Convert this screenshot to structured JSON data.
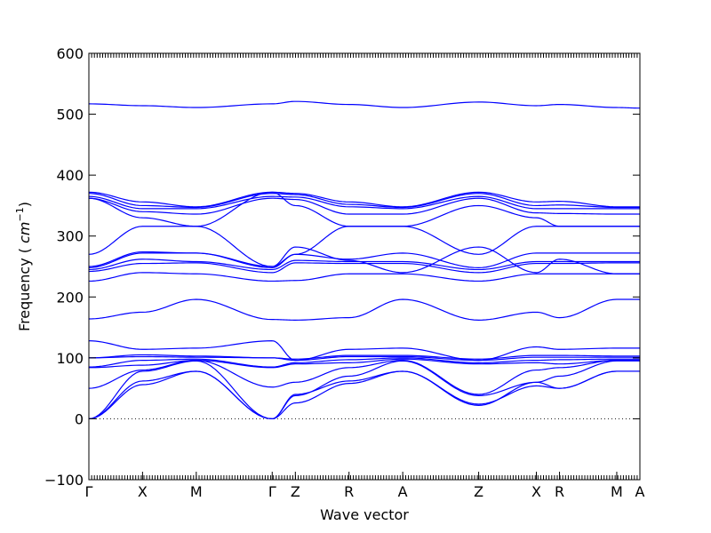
{
  "chart_data": {
    "type": "line",
    "title": "",
    "xlabel": "Wave vector",
    "ylabel": "Frequency (cm⁻¹)",
    "ylabel_unit_base": "cm",
    "ylabel_unit_exp": "−1",
    "ylim": [
      -100,
      600
    ],
    "yticks": [
      -100,
      0,
      100,
      200,
      300,
      400,
      500,
      600
    ],
    "xlim": [
      0,
      1
    ],
    "x_points": [
      {
        "label": "Γ",
        "x": 0.0
      },
      {
        "label": "X",
        "x": 0.0974
      },
      {
        "label": "M",
        "x": 0.1949
      },
      {
        "label": "Γ",
        "x": 0.3327
      },
      {
        "label": "Z",
        "x": 0.3747
      },
      {
        "label": "R",
        "x": 0.4721
      },
      {
        "label": "A",
        "x": 0.5696
      },
      {
        "label": "Z",
        "x": 0.7074
      },
      {
        "label": "X",
        "x": 0.8121
      },
      {
        "label": "R",
        "x": 0.8541
      },
      {
        "label": "M",
        "x": 0.958
      },
      {
        "label": "A",
        "x": 1.0
      }
    ],
    "zero_line": true,
    "series": [
      {
        "x": [
          0,
          0.0974,
          0.1949,
          0.3327,
          0.3747,
          0.4721,
          0.5696,
          0.7074,
          0.8121,
          0.8541,
          0.958,
          1.0
        ],
        "y": [
          517,
          514,
          511,
          517,
          521,
          516,
          511,
          520,
          514,
          516,
          511,
          510
        ]
      },
      {
        "x": [
          0,
          0.0974,
          0.1949,
          0.3327,
          0.3747,
          0.4721,
          0.5696,
          0.7074,
          0.8121,
          0.8541,
          0.958,
          1.0
        ],
        "y": [
          372,
          356,
          348,
          372,
          370,
          356,
          348,
          372,
          356,
          357,
          348,
          348
        ]
      },
      {
        "x": [
          0,
          0.0974,
          0.1949,
          0.3327,
          0.3747,
          0.4721,
          0.5696,
          0.7074,
          0.8121,
          0.8541,
          0.958,
          1.0
        ],
        "y": [
          370,
          350,
          347,
          370,
          368,
          352,
          347,
          370,
          350,
          351,
          347,
          347
        ]
      },
      {
        "x": [
          0,
          0.0974,
          0.1949,
          0.3327,
          0.3747,
          0.4721,
          0.5696,
          0.7074,
          0.8121,
          0.8541,
          0.958,
          1.0
        ],
        "y": [
          365,
          345,
          345,
          365,
          364,
          348,
          345,
          365,
          345,
          345,
          345,
          345
        ]
      },
      {
        "x": [
          0,
          0.0974,
          0.1949,
          0.3327,
          0.3747,
          0.4721,
          0.5696,
          0.7074,
          0.8121,
          0.8541,
          0.958,
          1.0
        ],
        "y": [
          362,
          340,
          336,
          362,
          360,
          336,
          336,
          362,
          338,
          337,
          336,
          336
        ]
      },
      {
        "x": [
          0,
          0.0974,
          0.1949,
          0.3327,
          0.3747,
          0.4721,
          0.5696,
          0.7074,
          0.8121,
          0.8541,
          0.958,
          1.0
        ],
        "y": [
          362,
          330,
          316,
          372,
          350,
          316,
          316,
          350,
          330,
          316,
          316,
          316
        ]
      },
      {
        "x": [
          0,
          0.0974,
          0.1949,
          0.3327,
          0.3747,
          0.4721,
          0.5696,
          0.7074,
          0.8121,
          0.8541,
          0.958,
          1.0
        ],
        "y": [
          270,
          316,
          316,
          250,
          270,
          316,
          316,
          270,
          316,
          316,
          316,
          316
        ]
      },
      {
        "x": [
          0,
          0.0974,
          0.1949,
          0.3327,
          0.3747,
          0.4721,
          0.5696,
          0.7074,
          0.8121,
          0.8541,
          0.958,
          1.0
        ],
        "y": [
          250,
          274,
          272,
          250,
          282,
          260,
          240,
          282,
          240,
          262,
          238,
          238
        ]
      },
      {
        "x": [
          0,
          0.0974,
          0.1949,
          0.3327,
          0.3747,
          0.4721,
          0.5696,
          0.7074,
          0.8121,
          0.8541,
          0.958,
          1.0
        ],
        "y": [
          248,
          272,
          272,
          248,
          270,
          262,
          272,
          248,
          272,
          272,
          272,
          272
        ]
      },
      {
        "x": [
          0,
          0.0974,
          0.1949,
          0.3327,
          0.3747,
          0.4721,
          0.5696,
          0.7074,
          0.8121,
          0.8541,
          0.958,
          1.0
        ],
        "y": [
          245,
          262,
          258,
          245,
          260,
          258,
          258,
          245,
          258,
          258,
          258,
          258
        ]
      },
      {
        "x": [
          0,
          0.0974,
          0.1949,
          0.3327,
          0.3747,
          0.4721,
          0.5696,
          0.7074,
          0.8121,
          0.8541,
          0.958,
          1.0
        ],
        "y": [
          242,
          255,
          256,
          240,
          256,
          255,
          255,
          240,
          255,
          255,
          256,
          256
        ]
      },
      {
        "x": [
          0,
          0.0974,
          0.1949,
          0.3327,
          0.3747,
          0.4721,
          0.5696,
          0.7074,
          0.8121,
          0.8541,
          0.958,
          1.0
        ],
        "y": [
          226,
          240,
          238,
          226,
          227,
          238,
          238,
          226,
          238,
          238,
          238,
          238
        ]
      },
      {
        "x": [
          0,
          0.0974,
          0.1949,
          0.3327,
          0.3747,
          0.4721,
          0.5696,
          0.7074,
          0.8121,
          0.8541,
          0.958,
          1.0
        ],
        "y": [
          164,
          175,
          196,
          163,
          162,
          166,
          196,
          162,
          175,
          166,
          196,
          196
        ]
      },
      {
        "x": [
          0,
          0.0974,
          0.1949,
          0.3327,
          0.3747,
          0.4721,
          0.5696,
          0.7074,
          0.8121,
          0.8541,
          0.958,
          1.0
        ],
        "y": [
          128,
          114,
          116,
          128,
          96,
          114,
          116,
          96,
          118,
          114,
          116,
          116
        ]
      },
      {
        "x": [
          0,
          0.0974,
          0.1949,
          0.3327,
          0.3747,
          0.4721,
          0.5696,
          0.7074,
          0.8121,
          0.8541,
          0.958,
          1.0
        ],
        "y": [
          100,
          105,
          103,
          100,
          98,
          104,
          104,
          98,
          104,
          104,
          103,
          103
        ]
      },
      {
        "x": [
          0,
          0.0974,
          0.1949,
          0.3327,
          0.3747,
          0.4721,
          0.5696,
          0.7074,
          0.8121,
          0.8541,
          0.958,
          1.0
        ],
        "y": [
          100,
          102,
          101,
          100,
          96,
          102,
          102,
          96,
          101,
          101,
          101,
          101
        ]
      },
      {
        "x": [
          0,
          0.0974,
          0.1949,
          0.3327,
          0.3747,
          0.4721,
          0.5696,
          0.7074,
          0.8121,
          0.8541,
          0.958,
          1.0
        ],
        "y": [
          85,
          96,
          98,
          85,
          92,
          97,
          100,
          92,
          96,
          97,
          98,
          98
        ]
      },
      {
        "x": [
          0,
          0.0974,
          0.1949,
          0.3327,
          0.3747,
          0.4721,
          0.5696,
          0.7074,
          0.8121,
          0.8541,
          0.958,
          1.0
        ],
        "y": [
          84,
          88,
          96,
          84,
          90,
          92,
          98,
          90,
          92,
          90,
          96,
          96
        ]
      },
      {
        "x": [
          0,
          0.0974,
          0.1949,
          0.3327,
          0.3747,
          0.4721,
          0.5696,
          0.7074,
          0.8121,
          0.8541,
          0.958,
          1.0
        ],
        "y": [
          50,
          80,
          96,
          52,
          60,
          84,
          96,
          40,
          80,
          84,
          96,
          96
        ]
      },
      {
        "x": [
          0,
          0.0974,
          0.1949,
          0.3327,
          0.3747,
          0.4721,
          0.5696,
          0.7074,
          0.8121,
          0.8541,
          0.958,
          1.0
        ],
        "y": [
          0,
          78,
          95,
          0,
          38,
          70,
          95,
          38,
          60,
          70,
          95,
          95
        ]
      },
      {
        "x": [
          0,
          0.0974,
          0.1949,
          0.3327,
          0.3747,
          0.4721,
          0.5696,
          0.7074,
          0.8121,
          0.8541,
          0.958,
          1.0
        ],
        "y": [
          0,
          62,
          78,
          0,
          40,
          62,
          78,
          22,
          60,
          50,
          78,
          78
        ]
      },
      {
        "x": [
          0,
          0.0974,
          0.1949,
          0.3327,
          0.3747,
          0.4721,
          0.5696,
          0.7074,
          0.8121,
          0.8541,
          0.958,
          1.0
        ],
        "y": [
          0,
          56,
          78,
          0,
          26,
          58,
          78,
          24,
          54,
          50,
          78,
          78
        ]
      }
    ]
  }
}
